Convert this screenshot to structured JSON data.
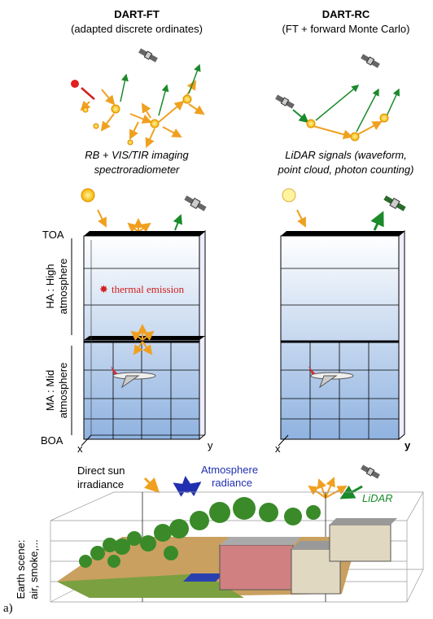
{
  "left_panel": {
    "title": "DART-FT",
    "subtitle": "(adapted discrete ordinates)",
    "caption_lines": [
      "RB + VIS/TIR imaging",
      "spectroradiometer"
    ],
    "toa": "TOA",
    "ha_label": [
      "HA : High",
      "atmosphere"
    ],
    "thermal": "thermal emission",
    "ma_label": [
      "MA : Mid",
      "atmosphere"
    ],
    "boa": "BOA",
    "x_axis": "x",
    "y_axis": "y"
  },
  "right_panel": {
    "title": "DART-RC",
    "subtitle": "(FT + forward Monte Carlo)",
    "caption_lines": [
      "LiDAR signals (waveform,",
      "point cloud, photon counting)"
    ],
    "x_axis": "x",
    "y_axis": "y"
  },
  "scene": {
    "sun_label": [
      "Direct sun",
      "irradiance"
    ],
    "atmo_label": [
      "Atmosphere",
      "radiance"
    ],
    "lidar": "LiDAR",
    "earth_label": [
      "Earth scene:",
      "air, smoke,..."
    ],
    "panel_tag": "a)"
  }
}
